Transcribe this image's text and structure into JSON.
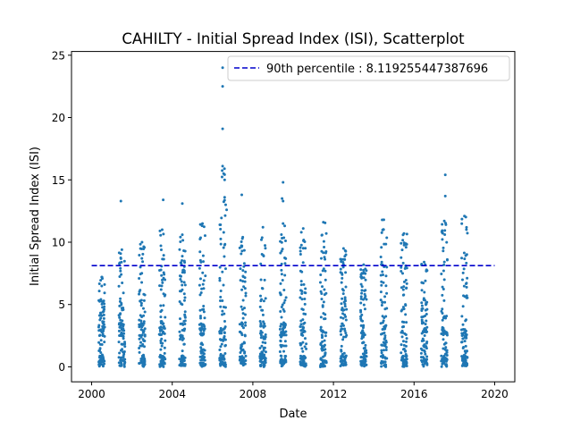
{
  "chart_data": {
    "type": "scatter",
    "title": "CAHILTY - Initial Spread Index (ISI), Scatterplot",
    "xlabel": "Date",
    "ylabel": "Initial Spread Index (ISI)",
    "x_ticks": [
      "2000",
      "2004",
      "2008",
      "2012",
      "2016",
      "2020"
    ],
    "y_ticks": [
      "0",
      "5",
      "10",
      "15",
      "20",
      "25"
    ],
    "xlim": [
      1999.0,
      2021.0
    ],
    "ylim": [
      -1.2,
      25.3
    ],
    "grid": false,
    "legend_position": "top-right",
    "reference_line": {
      "label": "90th percentile : 8.119255447387696",
      "value": 8.119255447387696,
      "x_range": [
        2000.0,
        2020.0
      ],
      "color": "#0000cc",
      "style": "dashed"
    },
    "series": [
      {
        "color": "#1f77b4",
        "seasons": [
          {
            "year": 2000,
            "start": 2000.35,
            "end": 2000.65,
            "max": 7.2
          },
          {
            "year": 2001,
            "start": 2001.35,
            "end": 2001.65,
            "max": 9.4
          },
          {
            "year": 2002,
            "start": 2002.35,
            "end": 2002.65,
            "max": 10.0
          },
          {
            "year": 2003,
            "start": 2003.35,
            "end": 2003.65,
            "max": 11.0
          },
          {
            "year": 2004,
            "start": 2004.35,
            "end": 2004.65,
            "max": 10.6
          },
          {
            "year": 2005,
            "start": 2005.35,
            "end": 2005.65,
            "max": 11.5
          },
          {
            "year": 2006,
            "start": 2006.35,
            "end": 2006.65,
            "max": 16.1
          },
          {
            "year": 2007,
            "start": 2007.35,
            "end": 2007.65,
            "max": 10.4
          },
          {
            "year": 2008,
            "start": 2008.35,
            "end": 2008.65,
            "max": 11.2
          },
          {
            "year": 2009,
            "start": 2009.35,
            "end": 2009.65,
            "max": 11.5
          },
          {
            "year": 2010,
            "start": 2010.35,
            "end": 2010.65,
            "max": 11.1
          },
          {
            "year": 2011,
            "start": 2011.35,
            "end": 2011.65,
            "max": 11.6
          },
          {
            "year": 2012,
            "start": 2012.35,
            "end": 2012.65,
            "max": 9.5
          },
          {
            "year": 2013,
            "start": 2013.35,
            "end": 2013.65,
            "max": 8.2
          },
          {
            "year": 2014,
            "start": 2014.35,
            "end": 2014.65,
            "max": 11.8
          },
          {
            "year": 2015,
            "start": 2015.35,
            "end": 2015.65,
            "max": 10.7
          },
          {
            "year": 2016,
            "start": 2016.35,
            "end": 2016.65,
            "max": 8.4
          },
          {
            "year": 2017,
            "start": 2017.35,
            "end": 2017.65,
            "max": 11.7
          },
          {
            "year": 2018,
            "start": 2018.35,
            "end": 2018.65,
            "max": 12.1
          }
        ],
        "outliers": [
          {
            "x": 2001.45,
            "y": 13.3
          },
          {
            "x": 2003.55,
            "y": 13.4
          },
          {
            "x": 2004.5,
            "y": 13.1
          },
          {
            "x": 2006.5,
            "y": 24.0
          },
          {
            "x": 2006.5,
            "y": 22.5
          },
          {
            "x": 2006.5,
            "y": 19.1
          },
          {
            "x": 2006.55,
            "y": 15.5
          },
          {
            "x": 2006.6,
            "y": 15.0
          },
          {
            "x": 2006.6,
            "y": 13.6
          },
          {
            "x": 2006.65,
            "y": 13.0
          },
          {
            "x": 2006.7,
            "y": 12.6
          },
          {
            "x": 2007.45,
            "y": 13.8
          },
          {
            "x": 2009.5,
            "y": 14.8
          },
          {
            "x": 2009.45,
            "y": 13.5
          },
          {
            "x": 2009.5,
            "y": 13.3
          },
          {
            "x": 2017.55,
            "y": 15.4
          },
          {
            "x": 2017.55,
            "y": 13.7
          }
        ]
      }
    ]
  }
}
